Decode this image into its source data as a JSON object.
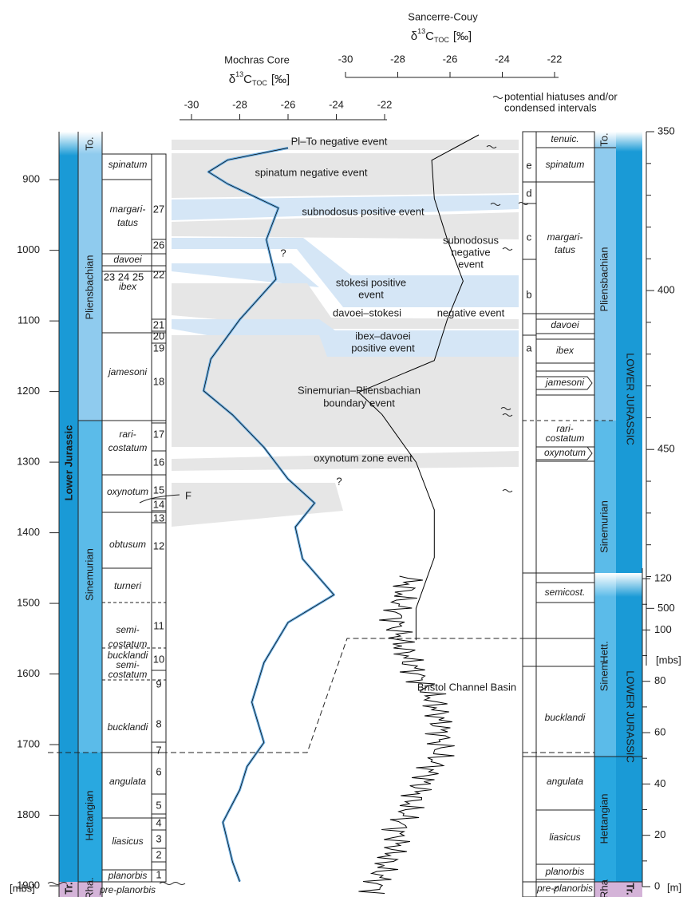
{
  "legend": {
    "hiatus": [
      "potential hiatuses and/or",
      "condensed intervals"
    ]
  },
  "axis_label": {
    "delta": "δ",
    "iso": "13",
    "element": "C",
    "sub": "TOC",
    "unit": "[‰]"
  },
  "mochras": {
    "title": "Mochras Core",
    "xlim": [
      -30,
      -22
    ],
    "xticks": [
      -30,
      -28,
      -26,
      -24,
      -22
    ],
    "ylim": [
      832,
      1900
    ],
    "yticks": [
      900,
      1000,
      1100,
      1200,
      1300,
      1400,
      1500,
      1600,
      1700,
      1800,
      1900
    ],
    "depth_unit": "[mbs]",
    "curve": {
      "color": "#6aaee3",
      "depth": [
        855,
        872,
        889,
        906,
        940,
        985,
        1041,
        1098,
        1154,
        1199,
        1233,
        1279,
        1324,
        1358,
        1392,
        1437,
        1488,
        1527,
        1584,
        1640,
        1697,
        1731,
        1764,
        1810,
        1866,
        1894
      ],
      "values": [
        -26.0,
        -28.5,
        -29.3,
        -28.5,
        -26.4,
        -26.9,
        -26.5,
        -28.0,
        -29.2,
        -29.5,
        -28.3,
        -27.0,
        -26.0,
        -24.9,
        -25.7,
        -25.4,
        -24.1,
        -26.0,
        -27.0,
        -27.5,
        -27.0,
        -27.7,
        -28.0,
        -28.7,
        -28.3,
        -28.0
      ]
    },
    "stages": {
      "era": "Lower Jurassic",
      "toarcian": "To.",
      "pliensbachian": "Pliensbachian",
      "sinemurian": "Sinemurian",
      "hettangian": "Hettangian",
      "triassic": "Tr.",
      "rhaetian": "Rha."
    },
    "zones": [
      [
        "spinatum"
      ],
      [
        "margari-",
        "tatus"
      ],
      [
        "davoei"
      ],
      [
        "ibex"
      ],
      [
        "jamesoni"
      ],
      [
        "rari-",
        "costatum"
      ],
      [
        "oxynotum"
      ],
      [
        "obtusum"
      ],
      [
        "turneri"
      ],
      [
        "semi-",
        "costatum"
      ],
      [
        "bucklandi",
        "semi-",
        "costatum"
      ],
      [
        "bucklandi"
      ],
      [
        "angulata"
      ],
      [
        "liasicus"
      ],
      [
        "planorbis"
      ],
      [
        "pre-planorbis"
      ]
    ],
    "subzones": [
      "27",
      "26",
      "23 24 25",
      "22",
      "21",
      "20",
      "19",
      "18",
      "17",
      "16",
      "15",
      "14",
      "13",
      "12",
      "11",
      "10",
      "9",
      "8",
      "7",
      "6",
      "5",
      "4",
      "3",
      "2",
      "1",
      "F"
    ]
  },
  "events": [
    [
      "Pl–To negative event"
    ],
    [
      "spinatum negative event"
    ],
    [
      "subnodosus positive event"
    ],
    [
      "subnodosus",
      "negative",
      "event"
    ],
    [
      "stokesi positive",
      "event"
    ],
    [
      "davoei–stokesi",
      "negative event"
    ],
    [
      "ibex–davoei",
      "positive event"
    ],
    [
      "Sinemurian–Pliensbachian",
      "boundary event"
    ],
    [
      "oxynotum zone event"
    ],
    [
      "?"
    ],
    [
      "?"
    ]
  ],
  "sancerre": {
    "title": "Sancerre-Couy",
    "xlim": [
      -30,
      -22
    ],
    "xticks": [
      -30,
      -28,
      -26,
      -24,
      -22
    ],
    "ylim": [
      350,
      518
    ],
    "yticks": [
      350,
      400,
      450,
      500
    ],
    "depth_unit": "[mbs]",
    "curve": {
      "color": "#000000",
      "depth": [
        351,
        359,
        371,
        384,
        397,
        409,
        422,
        432,
        439,
        454,
        469,
        484,
        500,
        510
      ],
      "values": [
        -24.9,
        -26.7,
        -26.6,
        -26.1,
        -25.5,
        -26.1,
        -26.6,
        -29.5,
        -28.6,
        -27.3,
        -26.6,
        -26.6,
        -27.3,
        -27.3
      ]
    },
    "zones": [
      [
        "tenuic."
      ],
      [
        "spinatum"
      ],
      [
        "margari-",
        "tatus"
      ],
      [
        "davoei"
      ],
      [
        "ibex"
      ],
      [
        "jamesoni"
      ],
      [
        "rari-",
        "costatum"
      ],
      [
        "oxynotum"
      ],
      [
        "semicost."
      ]
    ],
    "letters": [
      "e",
      "d",
      "c",
      "b",
      "a"
    ],
    "stages": {
      "toarcian": "To.",
      "pliensbachian": "Pliensbachian",
      "sinemurian": "Sinemurian",
      "hettangian": "Hett.",
      "era": "LOWER JURASSIC"
    }
  },
  "bristol": {
    "title": "Bristol Channel Basin",
    "ylim": [
      0,
      125
    ],
    "yticks": [
      0,
      20,
      40,
      60,
      80,
      100,
      120
    ],
    "depth_unit": "[m]",
    "zones": [
      "bucklandi",
      "angulata",
      "liasicus",
      "planorbis",
      "pre-planorbis"
    ],
    "stages": {
      "sinemurian": "Sinem.",
      "hettangian": "Hettangian",
      "rhaetian": "Rha",
      "era": "LOWER JURASSIC",
      "triassic": "Tr."
    }
  }
}
